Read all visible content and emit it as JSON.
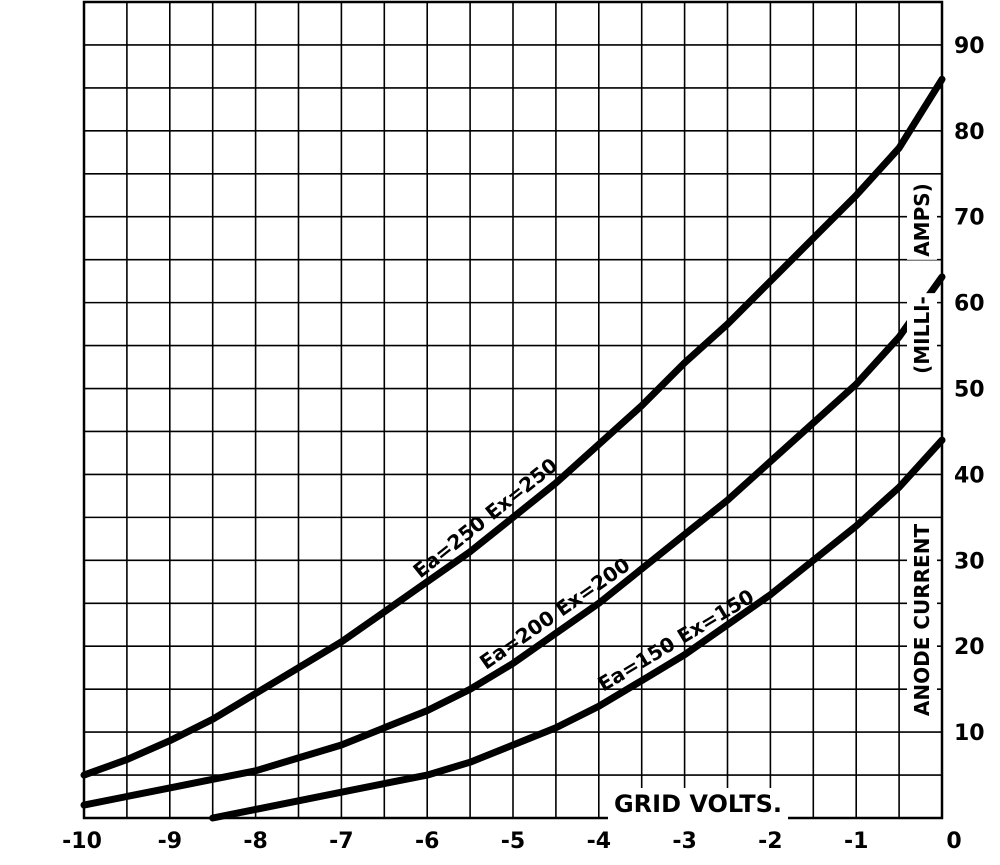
{
  "chart_data": {
    "type": "line",
    "xlabel": "GRID VOLTS.",
    "ylabel": "ANODE CURRENT (MILLI-AMPS)",
    "ylabel_lines": [
      "ANODE CURRENT",
      "(MILLI-",
      "AMPS)"
    ],
    "xlim": [
      -10,
      0
    ],
    "ylim": [
      0,
      95
    ],
    "x_ticks": [
      -10,
      -9,
      -8,
      -7,
      -6,
      -5,
      -4,
      -3,
      -2,
      -1,
      0
    ],
    "x_tick_labels": [
      "-10",
      "-9",
      "-8",
      "-7",
      "-6",
      "-5",
      "-4",
      "-3",
      "-2",
      "-1",
      "0"
    ],
    "y_ticks": [
      10,
      20,
      30,
      40,
      50,
      60,
      70,
      80,
      90
    ],
    "y_tick_labels": [
      "10",
      "20",
      "30",
      "40",
      "50",
      "60",
      "70",
      "80",
      "90"
    ],
    "grid": true,
    "grid_x_step": 0.5,
    "grid_y_step": 5,
    "series": [
      {
        "name": "Ea=250 Ex=250",
        "x": [
          -10,
          -9.5,
          -9,
          -8.5,
          -8,
          -7.5,
          -7,
          -6.5,
          -6,
          -5.5,
          -5,
          -4.5,
          -4,
          -3.5,
          -3,
          -2.5,
          -2,
          -1.5,
          -1,
          -0.5,
          0
        ],
        "values": [
          5,
          6.8,
          9,
          11.5,
          14.5,
          17.5,
          20.5,
          24,
          27.5,
          31,
          35,
          39,
          43.5,
          48,
          53,
          57.5,
          62.5,
          67.5,
          72.5,
          78,
          86
        ]
      },
      {
        "name": "Ea=200 Ex=200",
        "x": [
          -10,
          -9.5,
          -9,
          -8.5,
          -8,
          -7.5,
          -7,
          -6.5,
          -6,
          -5.5,
          -5,
          -4.5,
          -4,
          -3.5,
          -3,
          -2.5,
          -2,
          -1.5,
          -1,
          -0.5,
          0
        ],
        "values": [
          1.5,
          2.5,
          3.5,
          4.5,
          5.5,
          7,
          8.5,
          10.5,
          12.5,
          15,
          18,
          21.5,
          25,
          29,
          33,
          37,
          41.5,
          46,
          50.5,
          56,
          63
        ]
      },
      {
        "name": "Ea=150 Ex=150",
        "x": [
          -8.5,
          -8,
          -7.5,
          -7,
          -6.5,
          -6,
          -5.5,
          -5,
          -4.5,
          -4,
          -3.5,
          -3,
          -2.5,
          -2,
          -1.5,
          -1,
          -0.5,
          0
        ],
        "values": [
          0,
          1,
          2,
          3,
          4,
          5,
          6.5,
          8.5,
          10.5,
          13,
          16,
          19,
          22.5,
          26,
          30,
          34,
          38.5,
          44
        ]
      }
    ],
    "annotations": [
      "Ea=250 Ex=250",
      "Ea=200 Ex=200",
      "Ea=150 Ex=150"
    ]
  }
}
